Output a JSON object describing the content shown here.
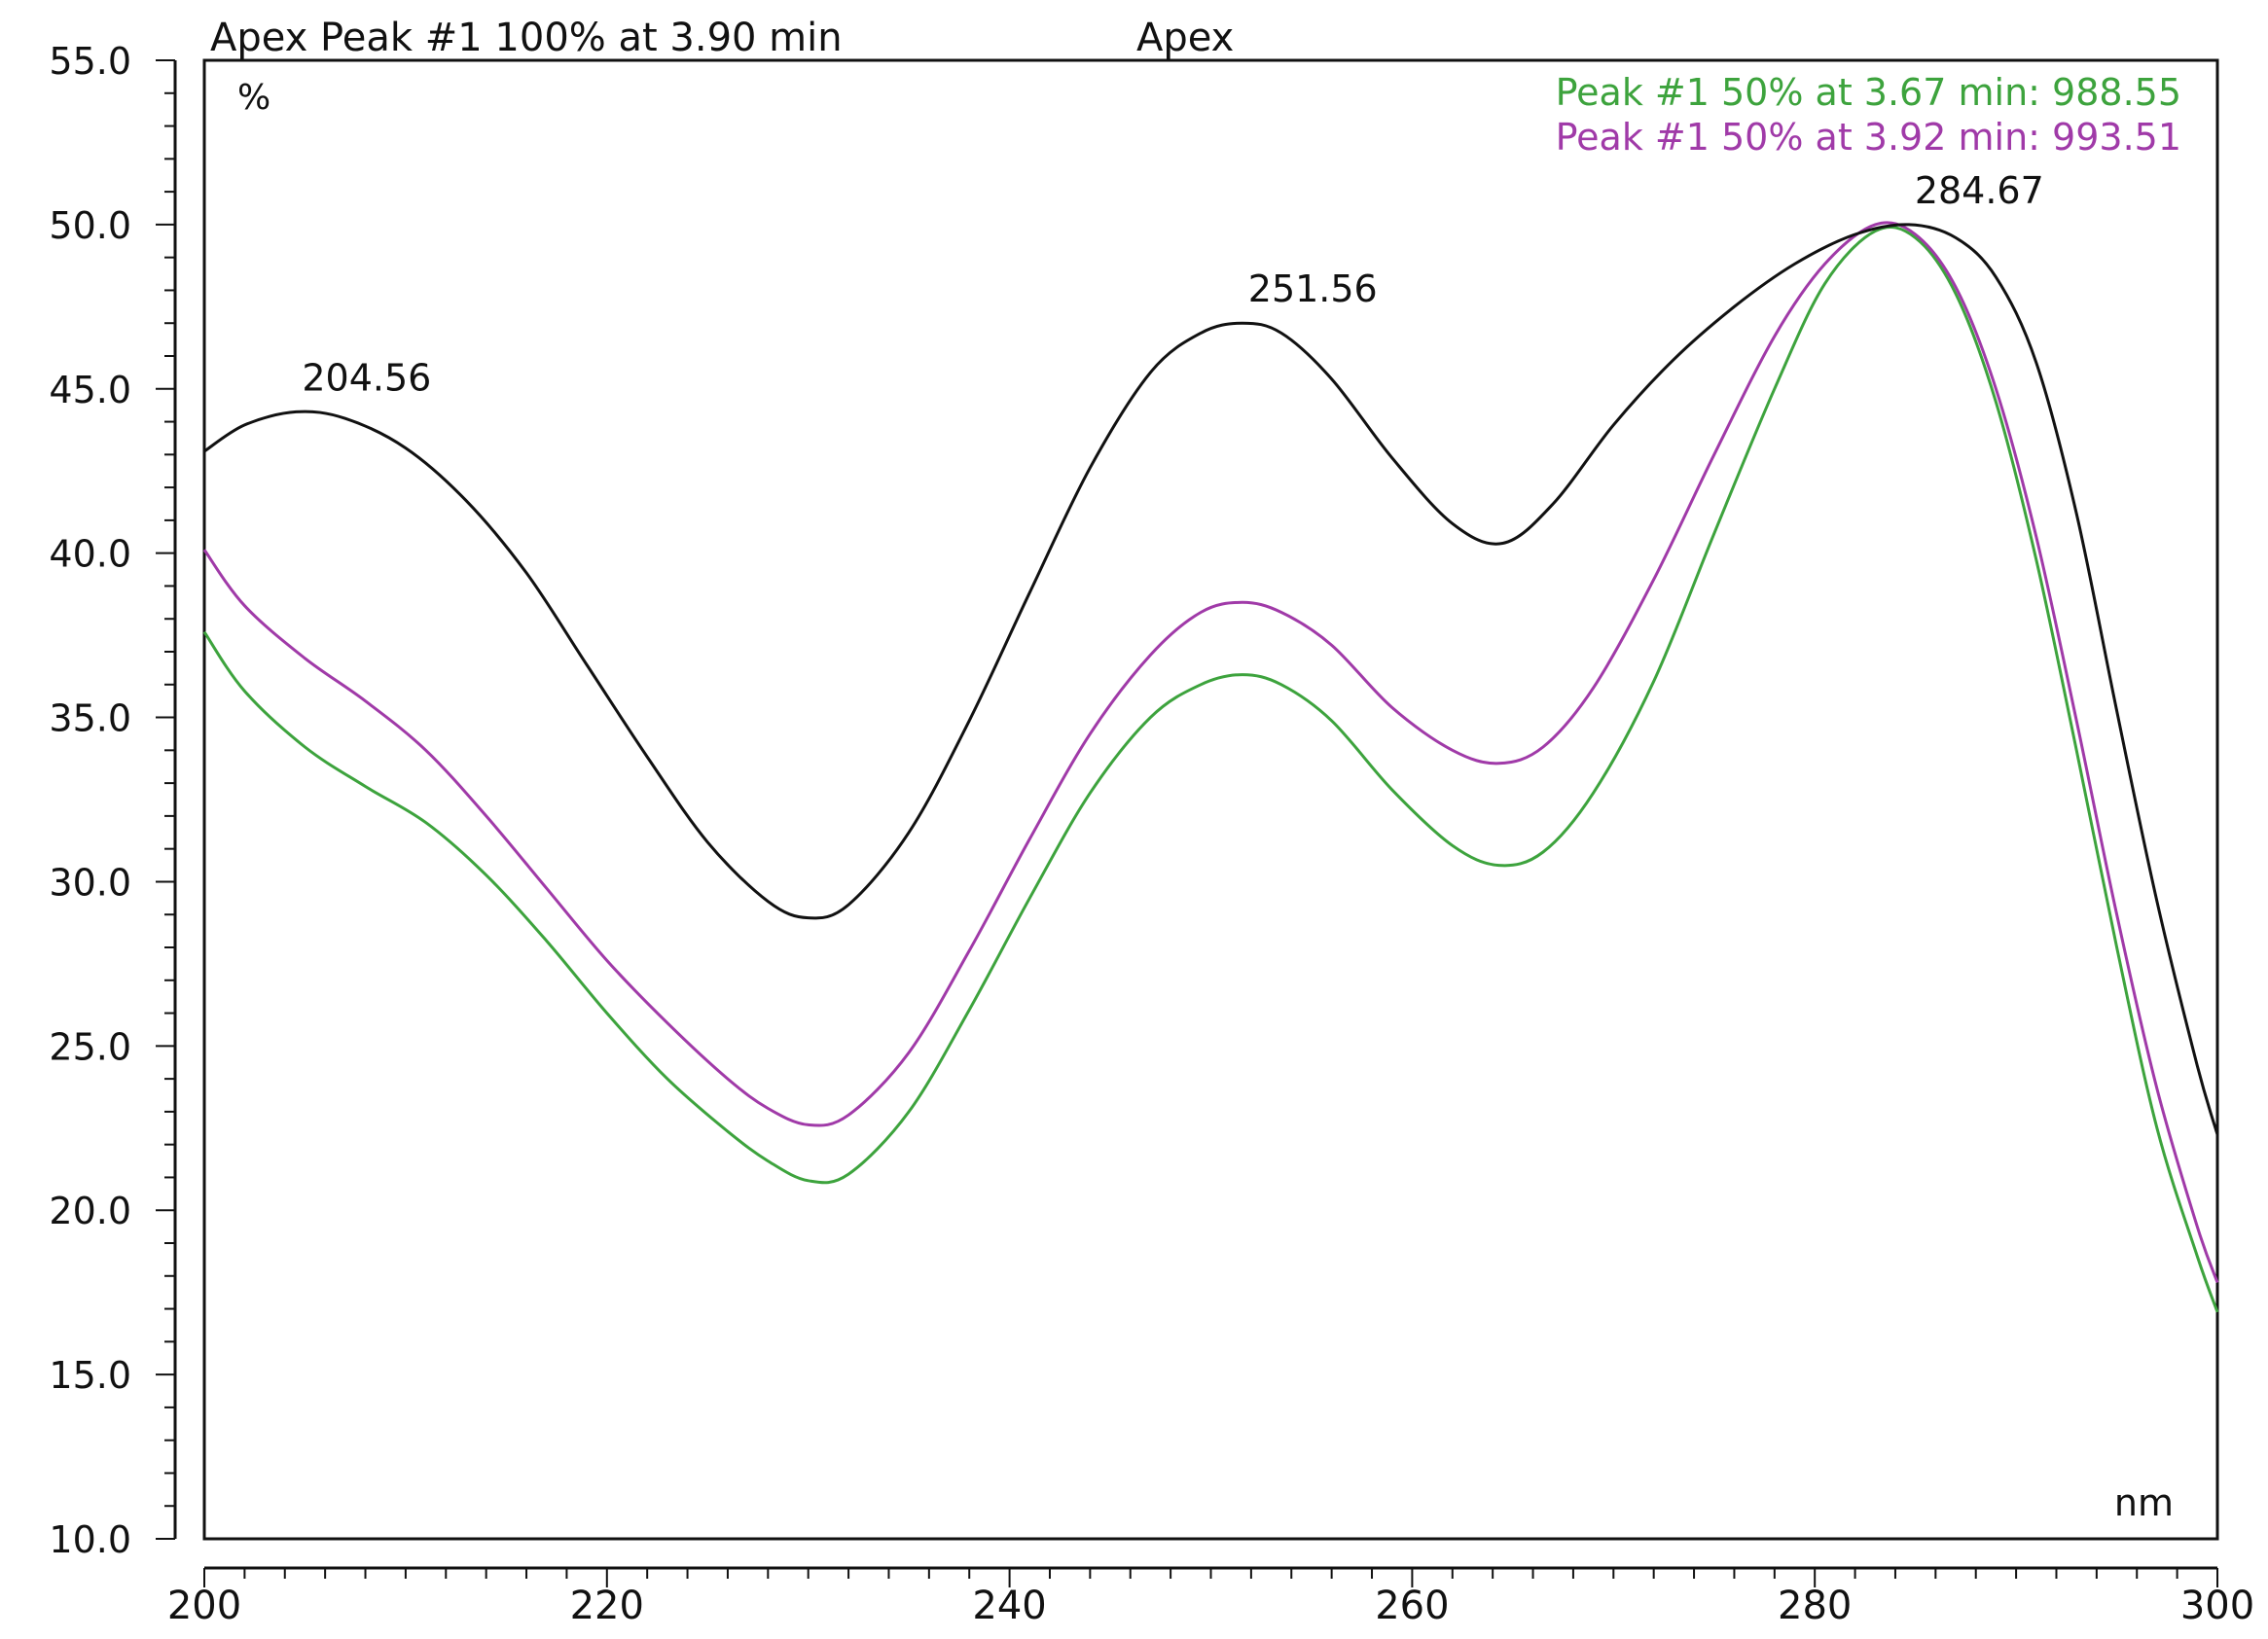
{
  "chart_data": {
    "type": "line",
    "header_left": "Apex Peak #1 100% at 3.90 min",
    "header_right": "Apex",
    "ylabel": "%",
    "xlabel": "nm",
    "xlim": [
      200,
      300
    ],
    "ylim": [
      10,
      55
    ],
    "x_ticks": [
      "200",
      "220",
      "240",
      "260",
      "280",
      "300"
    ],
    "y_ticks": [
      "10.0",
      "15.0",
      "20.0",
      "25.0",
      "30.0",
      "35.0",
      "40.0",
      "45.0",
      "50.0",
      "55.0"
    ],
    "grid": false,
    "legend": [
      {
        "label": "Peak #1 50% at 3.67 min: 988.55",
        "color": "#3da33d"
      },
      {
        "label": "Peak #1 50% at 3.92 min: 993.51",
        "color": "#a03aa8"
      }
    ],
    "annotations": [
      {
        "text": "204.56",
        "x": 204.56,
        "y": 44.3
      },
      {
        "text": "251.56",
        "x": 251.56,
        "y": 47.0
      },
      {
        "text": "284.67",
        "x": 284.67,
        "y": 50.0
      }
    ],
    "series": [
      {
        "color": "#111111",
        "x": [
          200,
          202,
          204.56,
          207,
          210,
          213,
          216,
          219,
          222,
          225,
          228,
          230,
          232,
          235,
          238,
          241,
          244,
          247,
          249.5,
          251.56,
          253.5,
          256,
          259,
          262,
          264.5,
          267,
          270,
          273,
          276,
          279,
          282,
          284.67,
          287,
          289,
          291,
          293,
          295,
          297,
          299,
          300
        ],
        "y": [
          43.1,
          43.9,
          44.3,
          44.1,
          43.2,
          41.6,
          39.4,
          36.6,
          33.8,
          31.2,
          29.4,
          28.9,
          29.3,
          31.5,
          34.9,
          38.8,
          42.6,
          45.5,
          46.7,
          47.0,
          46.7,
          45.3,
          42.9,
          40.9,
          40.3,
          41.5,
          43.9,
          45.9,
          47.5,
          48.8,
          49.7,
          50.0,
          49.6,
          48.4,
          45.8,
          41.2,
          35.2,
          29.4,
          24.4,
          22.3
        ]
      },
      {
        "color": "#3da33d",
        "x": [
          200,
          202,
          205,
          208,
          211,
          214,
          217,
          220,
          223,
          226,
          228,
          230,
          232,
          235,
          238,
          241,
          244,
          247,
          249.5,
          251.56,
          253.5,
          256,
          259,
          262,
          264.3,
          266.5,
          269,
          272,
          275,
          278,
          280.5,
          283,
          285,
          287,
          289,
          291,
          293,
          295,
          297,
          299,
          300
        ],
        "y": [
          37.6,
          35.8,
          34.1,
          32.9,
          31.8,
          30.2,
          28.2,
          26.0,
          24.0,
          22.4,
          21.5,
          20.9,
          21.1,
          23.0,
          26.1,
          29.5,
          32.7,
          35.0,
          36.0,
          36.3,
          36.0,
          34.9,
          32.8,
          31.1,
          30.5,
          30.9,
          32.7,
          36.1,
          40.6,
          45.0,
          48.2,
          49.8,
          49.6,
          47.9,
          44.6,
          39.8,
          34.0,
          28.0,
          22.5,
          18.6,
          16.9
        ]
      },
      {
        "color": "#a03aa8",
        "x": [
          200,
          202,
          205,
          208,
          211,
          214,
          217,
          220,
          223,
          226,
          228,
          230,
          232,
          235,
          238,
          241,
          244,
          247,
          249.5,
          251.56,
          253.5,
          256,
          259,
          262,
          264.3,
          266.5,
          269,
          272,
          275,
          278,
          280.5,
          283,
          285,
          287,
          289,
          291,
          293,
          295,
          297,
          299,
          300
        ],
        "y": [
          40.1,
          38.4,
          36.8,
          35.5,
          34.0,
          32.0,
          29.8,
          27.6,
          25.7,
          24.0,
          23.1,
          22.6,
          22.9,
          24.8,
          27.9,
          31.3,
          34.5,
          36.9,
          38.2,
          38.5,
          38.2,
          37.2,
          35.3,
          34.0,
          33.6,
          34.1,
          35.9,
          39.2,
          43.0,
          46.6,
          48.8,
          50.0,
          49.7,
          48.1,
          45.0,
          40.5,
          34.9,
          29.0,
          23.7,
          19.5,
          17.8
        ]
      }
    ]
  }
}
